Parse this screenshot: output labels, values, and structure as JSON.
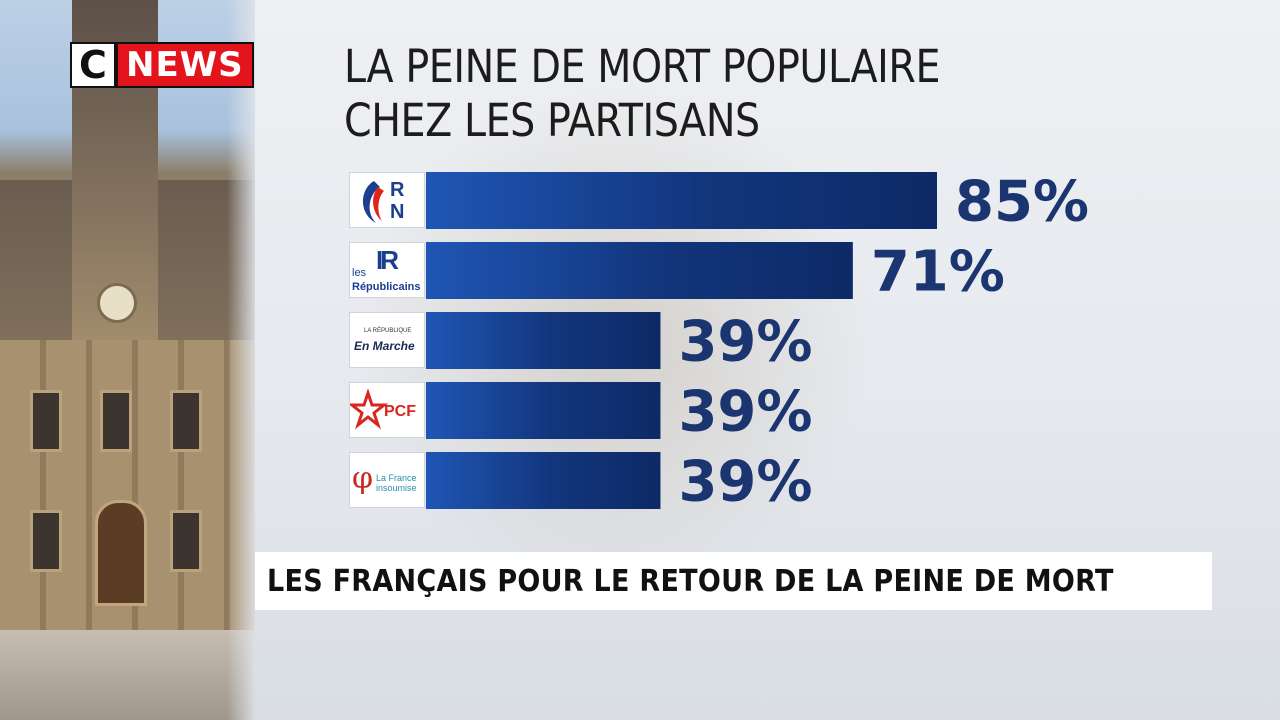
{
  "channel": {
    "logo_c": "C",
    "logo_news": "NEWS"
  },
  "title": [
    "LA PEINE DE MORT POPULAIRE",
    "CHEZ LES PARTISANS"
  ],
  "banner": "LES FRANÇAIS POUR LE RETOUR DE LA PEINE DE MORT",
  "colors": {
    "bar_dark": "#0d2a66",
    "bar_light": "#1f56b5",
    "value_text": "#1a3570",
    "brand_red": "#e3141b"
  },
  "parties": [
    {
      "logo": "rn-logo",
      "logo_text": [
        "R",
        "N"
      ]
    },
    {
      "logo": "lr-logo",
      "logo_text": [
        "IR",
        "les",
        "Républicains"
      ]
    },
    {
      "logo": "lrem-logo",
      "logo_text": [
        "LA RÉPUBLIQUE",
        "En Marche"
      ]
    },
    {
      "logo": "pcf-logo",
      "logo_text": [
        "PCF"
      ]
    },
    {
      "logo": "lfi-logo",
      "logo_text": [
        "φ",
        "La France",
        "insoumise"
      ]
    }
  ],
  "chart_data": {
    "type": "bar",
    "orientation": "horizontal",
    "title": "LA PEINE DE MORT POPULAIRE CHEZ LES PARTISANS",
    "categories": [
      "RN",
      "Les Républicains",
      "La République En Marche",
      "PCF",
      "La France insoumise"
    ],
    "values": [
      85,
      71,
      39,
      39,
      39
    ],
    "value_labels": [
      "85%",
      "71%",
      "39%",
      "39%",
      "39%"
    ],
    "unit": "%",
    "xlim": [
      0,
      100
    ],
    "grid": false,
    "legend": "none"
  }
}
